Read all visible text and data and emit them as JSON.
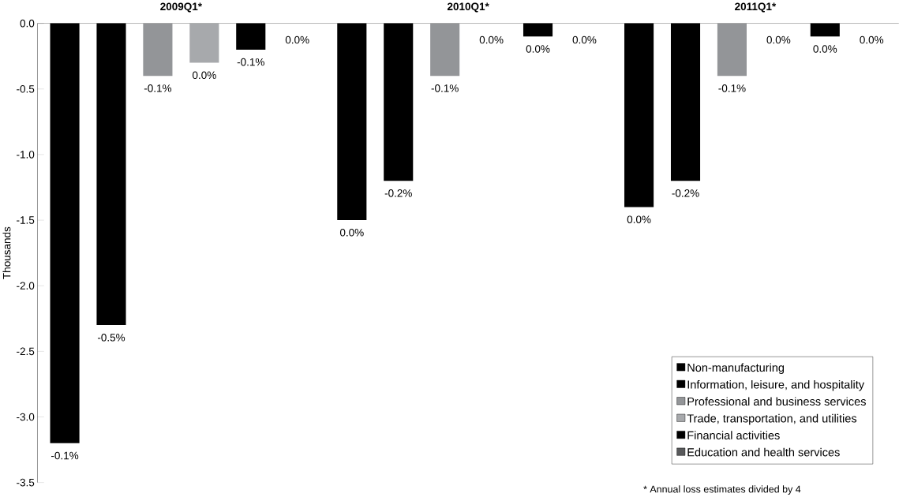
{
  "chart_data": {
    "type": "bar",
    "ylabel": "Thousands",
    "categories": [
      "2009Q1*",
      "2010Q1*",
      "2011Q1*"
    ],
    "series": [
      {
        "name": "Non-manufacturing",
        "color": "#000000",
        "values": [
          -3.2,
          -1.5,
          -1.4
        ]
      },
      {
        "name": "Information, leisure, and hospitality",
        "color": "#000000",
        "values": [
          -2.3,
          -1.2,
          -1.2
        ]
      },
      {
        "name": "Professional and business services",
        "color": "#939598",
        "values": [
          -0.4,
          -0.4,
          -0.4
        ]
      },
      {
        "name": "Trade, transportation, and utilities",
        "color": "#a7a9ac",
        "values": [
          -0.3,
          0,
          0
        ]
      },
      {
        "name": "Financial activities",
        "color": "#000000",
        "values": [
          -0.2,
          -0.1,
          -0.1
        ]
      },
      {
        "name": "Education and health services",
        "color": "#58595b",
        "values": [
          0,
          0,
          0
        ]
      }
    ],
    "ylim": [
      -3.5,
      0
    ],
    "yticks": [
      {
        "value": 0,
        "label": "0.0"
      },
      {
        "value": -0.5,
        "label": "-0.5"
      },
      {
        "value": -1,
        "label": "-1.0"
      },
      {
        "value": -1.5,
        "label": "-1.5"
      },
      {
        "value": -2,
        "label": "-2.0"
      },
      {
        "value": -2.5,
        "label": "-2.5"
      },
      {
        "value": -3,
        "label": "-3.0"
      },
      {
        "value": -3.5,
        "label": "-3.5"
      }
    ],
    "legend": "bottom right",
    "annotations": [
      "-0.1%",
      "0.0%",
      "0.0%",
      "-0.5%",
      "-0.2%",
      "-0.2%",
      "-0.1%",
      "-0.1%",
      "-0.1%",
      "0.0%",
      "0.0%",
      "0.0%",
      "-0.1%",
      "0.0%",
      "0.0%",
      "0.0%",
      "0.0%",
      "0.0%",
      "* Annual loss estimates divided by 4"
    ]
  }
}
